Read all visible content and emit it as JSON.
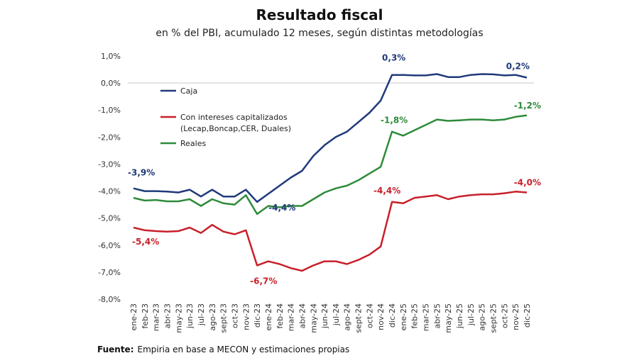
{
  "chart_data": {
    "type": "line",
    "title": "Resultado fiscal",
    "subtitle": "en % del PBI, acumulado 12 meses, según distintas metodologías",
    "xlabel": "",
    "ylabel": "",
    "ylim": [
      -8.0,
      1.0
    ],
    "yticks": [
      "1,0%",
      "0,0%",
      "-1,0%",
      "-2,0%",
      "-3,0%",
      "-4,0%",
      "-5,0%",
      "-6,0%",
      "-7,0%",
      "-8,0%"
    ],
    "ytick_values": [
      1,
      0,
      -1,
      -2,
      -3,
      -4,
      -5,
      -6,
      -7,
      -8
    ],
    "grid": false,
    "zero_line": true,
    "legend_position": "top-left (inside)",
    "categories": [
      "ene-23",
      "feb-23",
      "mar-23",
      "abr-23",
      "may-23",
      "jun-23",
      "jul-23",
      "ago-23",
      "sept-23",
      "oct-23",
      "nov-23",
      "dic-23",
      "ene-24",
      "feb-24",
      "mar-24",
      "abr-24",
      "may-24",
      "jun-24",
      "jul-24",
      "ago-24",
      "sept-24",
      "oct-24",
      "nov-24",
      "dic-24",
      "ene-25",
      "feb-25",
      "mar-25",
      "abr-25",
      "may-25",
      "jun-25",
      "jul-25",
      "ago-25",
      "sept-25",
      "oct-25",
      "nov-25",
      "dic-25"
    ],
    "series": [
      {
        "name": "Caja",
        "color": "#1f3a7a",
        "values": [
          -3.9,
          -4.0,
          -4.0,
          -4.02,
          -4.05,
          -3.95,
          -4.2,
          -3.95,
          -4.2,
          -4.2,
          -3.95,
          -4.4,
          -4.1,
          -3.8,
          -3.5,
          -3.25,
          -2.7,
          -2.3,
          -2.0,
          -1.8,
          -1.45,
          -1.1,
          -0.65,
          0.3,
          0.3,
          0.28,
          0.28,
          0.33,
          0.22,
          0.22,
          0.3,
          0.33,
          0.32,
          0.28,
          0.3,
          0.2
        ]
      },
      {
        "name": "Con intereses capitalizados",
        "name_line2": "(Lecap,Boncap,CER, Duales)",
        "color": "#c8202a",
        "values": [
          -5.35,
          -5.45,
          -5.48,
          -5.5,
          -5.48,
          -5.35,
          -5.55,
          -5.25,
          -5.5,
          -5.6,
          -5.45,
          -6.75,
          -6.6,
          -6.7,
          -6.85,
          -6.95,
          -6.75,
          -6.6,
          -6.6,
          -6.7,
          -6.55,
          -6.35,
          -6.05,
          -4.4,
          -4.45,
          -4.25,
          -4.2,
          -4.15,
          -4.3,
          -4.2,
          -4.15,
          -4.12,
          -4.12,
          -4.08,
          -4.02,
          -4.05
        ]
      },
      {
        "name": "Reales",
        "color": "#2e8b3a",
        "values": [
          -4.25,
          -4.35,
          -4.33,
          -4.38,
          -4.38,
          -4.3,
          -4.55,
          -4.3,
          -4.45,
          -4.5,
          -4.15,
          -4.85,
          -4.55,
          -4.6,
          -4.55,
          -4.55,
          -4.3,
          -4.05,
          -3.9,
          -3.8,
          -3.6,
          -3.35,
          -3.1,
          -1.8,
          -1.95,
          -1.75,
          -1.55,
          -1.35,
          -1.4,
          -1.38,
          -1.35,
          -1.35,
          -1.38,
          -1.35,
          -1.25,
          -1.2
        ]
      }
    ],
    "annotations": [
      {
        "text": "-3,9%",
        "series": 0,
        "month": "ene-23"
      },
      {
        "text": "-4,4%",
        "series": 0,
        "month": "dic-23"
      },
      {
        "text": "0,3%",
        "series": 0,
        "month": "dic-24"
      },
      {
        "text": "0,2%",
        "series": 0,
        "month": "dic-25"
      },
      {
        "text": "-5,4%",
        "series": 1,
        "month": "ene-23"
      },
      {
        "text": "-6,7%",
        "series": 1,
        "month": "dic-23"
      },
      {
        "text": "-4,4%",
        "series": 1,
        "month": "dic-24"
      },
      {
        "text": "-4,0%",
        "series": 1,
        "month": "dic-25"
      },
      {
        "text": "-1,8%",
        "series": 2,
        "month": "dic-24"
      },
      {
        "text": "-1,2%",
        "series": 2,
        "month": "dic-25"
      }
    ]
  },
  "footer": {
    "label": "Fuente:",
    "text": "Empiria en base a MECON y estimaciones propias"
  }
}
